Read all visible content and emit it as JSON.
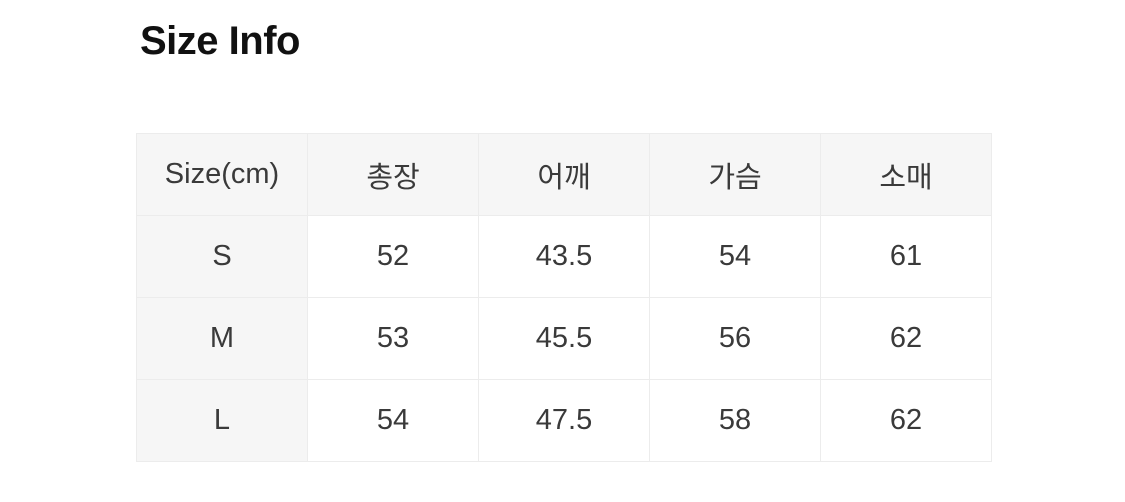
{
  "page": {
    "title": "Size Info"
  },
  "colors": {
    "header_background": "#f6f6f6",
    "cell_background": "#ffffff",
    "border": "#ececec",
    "title_text": "#111111",
    "cell_text": "#3a3a3a"
  },
  "size_table": {
    "headers": [
      "Size(cm)",
      "총장",
      "어깨",
      "가슴",
      "소매"
    ],
    "rows": [
      {
        "size": "S",
        "values": [
          "52",
          "43.5",
          "54",
          "61"
        ]
      },
      {
        "size": "M",
        "values": [
          "53",
          "45.5",
          "56",
          "62"
        ]
      },
      {
        "size": "L",
        "values": [
          "54",
          "47.5",
          "58",
          "62"
        ]
      }
    ]
  }
}
